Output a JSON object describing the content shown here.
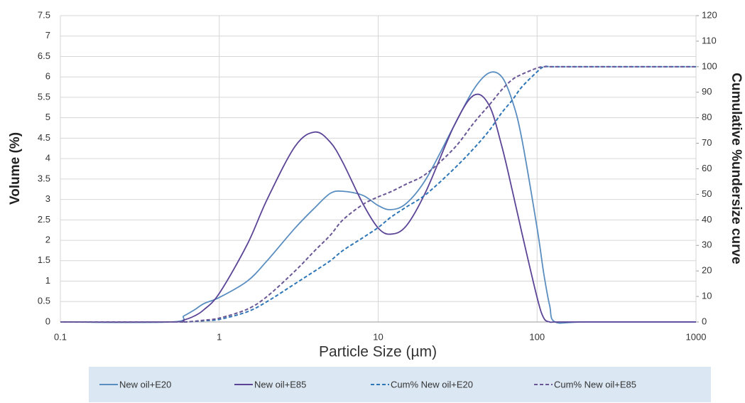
{
  "chart_data": {
    "type": "line",
    "xlabel": "Particle Size (µm)",
    "ylabel": "Volume (%)",
    "y2label": "Cumulative %undersize curve",
    "x": [
      0.1,
      0.5,
      0.6,
      0.7,
      0.8,
      1,
      1.5,
      2,
      3,
      4,
      5,
      6,
      8,
      10,
      12,
      15,
      20,
      30,
      40,
      50,
      60,
      70,
      80,
      100,
      110,
      120,
      130,
      200,
      1000
    ],
    "xscale": "log",
    "xlim": [
      0.1,
      1000
    ],
    "xticks": [
      0.1,
      1,
      10,
      100,
      1000
    ],
    "ylim": [
      0,
      7.5
    ],
    "yticks": [
      0,
      0.5,
      1,
      1.5,
      2,
      2.5,
      3,
      3.5,
      4,
      4.5,
      5,
      5.5,
      6,
      6.5,
      7,
      7.5
    ],
    "y2lim": [
      0,
      120
    ],
    "y2ticks": [
      0,
      10,
      20,
      30,
      40,
      50,
      60,
      70,
      80,
      90,
      100,
      110,
      120
    ],
    "grid": true,
    "legend": "bottom",
    "series": [
      {
        "name": "New oil+E20",
        "color": "#5a8ec0",
        "dash": false,
        "values": [
          0,
          0,
          0.15,
          0.3,
          0.45,
          0.6,
          1.0,
          1.5,
          2.3,
          2.8,
          3.15,
          3.2,
          3.1,
          2.85,
          2.75,
          2.9,
          3.5,
          4.8,
          5.7,
          6.1,
          6.0,
          5.4,
          4.5,
          2.3,
          1.2,
          0.4,
          0,
          0,
          0
        ]
      },
      {
        "name": "New oil+E85",
        "color": "#5b4496",
        "dash": false,
        "values": [
          0,
          0,
          0.05,
          0.15,
          0.3,
          0.7,
          1.9,
          3.0,
          4.3,
          4.65,
          4.4,
          3.9,
          2.9,
          2.3,
          2.15,
          2.35,
          3.2,
          4.8,
          5.55,
          5.3,
          4.3,
          3.2,
          2.2,
          0.6,
          0.1,
          0,
          0,
          0,
          0
        ]
      },
      {
        "name": "Cum% New oil+E20",
        "color": "#2f76b6",
        "dash": true,
        "axis": "y2",
        "values": [
          0,
          0,
          0,
          0.2,
          0.5,
          1,
          4,
          8,
          15,
          20,
          24,
          28,
          33,
          37,
          41,
          45,
          50,
          60,
          68,
          75,
          82,
          87,
          92,
          98,
          100,
          100,
          100,
          100,
          100
        ]
      },
      {
        "name": "Cum% New oil+E85",
        "color": "#6a5796",
        "dash": true,
        "axis": "y2",
        "values": [
          0,
          0,
          0,
          0.3,
          0.7,
          1.5,
          5,
          10,
          20,
          28,
          34,
          40,
          46,
          49,
          51,
          54,
          58,
          68,
          78,
          85,
          91,
          95,
          97,
          99.5,
          100,
          100,
          100,
          100,
          100
        ]
      }
    ]
  }
}
